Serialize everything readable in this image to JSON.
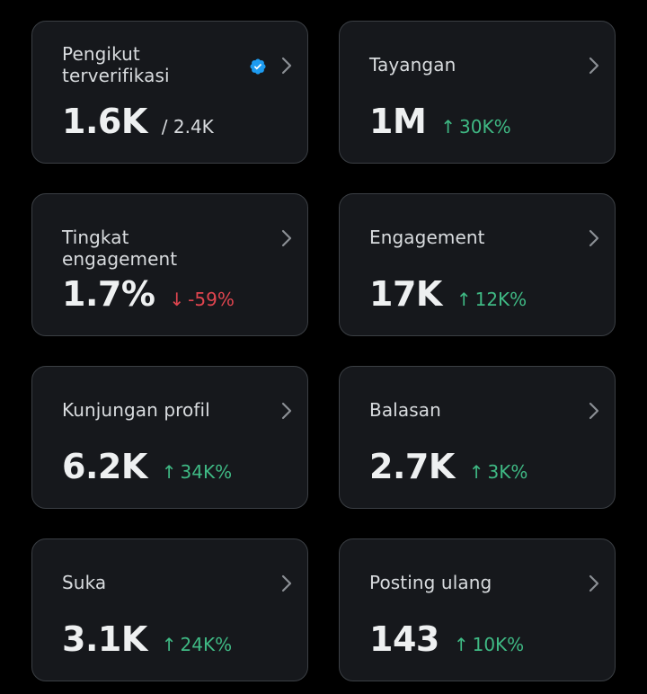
{
  "colors": {
    "background": "#000000",
    "card": "#16181c",
    "border": "#3b3f44",
    "positive": "#3fb984",
    "negative": "#e0454f",
    "verified": "#1d9bf0"
  },
  "cards": [
    {
      "title": "Pengikut terverifikasi",
      "value": "1.6K",
      "sub": "/ 2.4K",
      "icon": "verified-badge-icon"
    },
    {
      "title": "Tayangan",
      "value": "1M",
      "delta": "30K%",
      "direction": "up",
      "arrow": "↑"
    },
    {
      "title": "Tingkat engagement",
      "value": "1.7%",
      "delta": "-59%",
      "direction": "down",
      "arrow": "↓"
    },
    {
      "title": "Engagement",
      "value": "17K",
      "delta": "12K%",
      "direction": "up",
      "arrow": "↑"
    },
    {
      "title": "Kunjungan profil",
      "value": "6.2K",
      "delta": "34K%",
      "direction": "up",
      "arrow": "↑"
    },
    {
      "title": "Balasan",
      "value": "2.7K",
      "delta": "3K%",
      "direction": "up",
      "arrow": "↑"
    },
    {
      "title": "Suka",
      "value": "3.1K",
      "delta": "24K%",
      "direction": "up",
      "arrow": "↑"
    },
    {
      "title": "Posting ulang",
      "value": "143",
      "delta": "10K%",
      "direction": "up",
      "arrow": "↑"
    }
  ]
}
